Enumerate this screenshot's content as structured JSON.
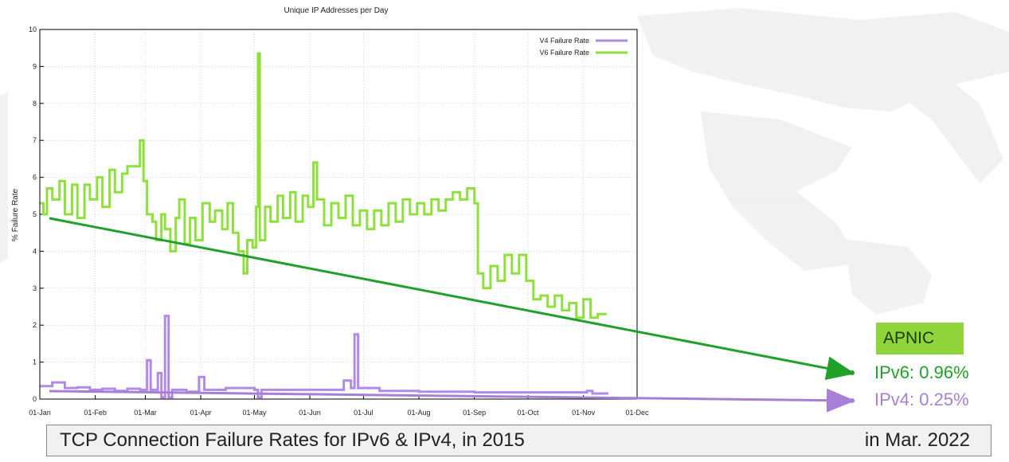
{
  "chart_data": {
    "type": "line",
    "title": "Unique IP Addresses per Day",
    "xlabel": "",
    "ylabel": "% Failure Rate",
    "ylim": [
      0,
      10
    ],
    "xlim": [
      "01-Jan",
      "01-Dec"
    ],
    "x_tick_labels": [
      "01-Jan",
      "01-Feb",
      "01-Mar",
      "01-Apr",
      "01-May",
      "01-Jun",
      "01-Jul",
      "01-Aug",
      "01-Sep",
      "01-Oct",
      "01-Nov",
      "01-Dec"
    ],
    "y_tick_labels": [
      "0",
      "1",
      "2",
      "3",
      "4",
      "5",
      "6",
      "7",
      "8",
      "9",
      "10"
    ],
    "grid": true,
    "legend_position": "top-right",
    "series": [
      {
        "name": "V4 Failure Rate",
        "color": "#b18ae8",
        "points": [
          [
            "01-Jan",
            0.35
          ],
          [
            "08-Jan",
            0.45
          ],
          [
            "15-Jan",
            0.3
          ],
          [
            "22-Jan",
            0.32
          ],
          [
            "29-Jan",
            0.25
          ],
          [
            "05-Feb",
            0.28
          ],
          [
            "12-Feb",
            0.22
          ],
          [
            "19-Feb",
            0.28
          ],
          [
            "26-Feb",
            0.25
          ],
          [
            "02-Mar",
            1.05
          ],
          [
            "04-Mar",
            0.25
          ],
          [
            "08-Mar",
            0.7
          ],
          [
            "10-Mar",
            0.05
          ],
          [
            "12-Mar",
            2.25
          ],
          [
            "14-Mar",
            0.05
          ],
          [
            "16-Mar",
            0.25
          ],
          [
            "24-Mar",
            0.2
          ],
          [
            "31-Mar",
            0.6
          ],
          [
            "03-Apr",
            0.25
          ],
          [
            "15-Apr",
            0.3
          ],
          [
            "01-May",
            0.25
          ],
          [
            "03-May",
            0.05
          ],
          [
            "05-May",
            0.25
          ],
          [
            "15-May",
            0.25
          ],
          [
            "01-Jun",
            0.25
          ],
          [
            "15-Jun",
            0.25
          ],
          [
            "20-Jun",
            0.5
          ],
          [
            "24-Jun",
            0.3
          ],
          [
            "26-Jun",
            1.75
          ],
          [
            "28-Jun",
            0.3
          ],
          [
            "10-Jul",
            0.22
          ],
          [
            "01-Aug",
            0.2
          ],
          [
            "15-Aug",
            0.2
          ],
          [
            "01-Sep",
            0.18
          ],
          [
            "03-Nov",
            0.22
          ],
          [
            "06-Nov",
            0.15
          ],
          [
            "15-Nov",
            0.15
          ]
        ]
      },
      {
        "name": "V6 Failure Rate",
        "color": "#8ee03d",
        "points": [
          [
            "01-Jan",
            5.3
          ],
          [
            "03-Jan",
            5.0
          ],
          [
            "05-Jan",
            5.7
          ],
          [
            "08-Jan",
            5.4
          ],
          [
            "12-Jan",
            5.9
          ],
          [
            "15-Jan",
            5.0
          ],
          [
            "19-Jan",
            5.8
          ],
          [
            "22-Jan",
            4.9
          ],
          [
            "26-Jan",
            5.8
          ],
          [
            "29-Jan",
            5.4
          ],
          [
            "02-Feb",
            6.0
          ],
          [
            "05-Feb",
            5.2
          ],
          [
            "09-Feb",
            6.2
          ],
          [
            "12-Feb",
            5.6
          ],
          [
            "16-Feb",
            6.1
          ],
          [
            "19-Feb",
            6.3
          ],
          [
            "23-Feb",
            6.3
          ],
          [
            "26-Feb",
            7.0
          ],
          [
            "28-Feb",
            5.9
          ],
          [
            "02-Mar",
            5.0
          ],
          [
            "05-Mar",
            4.8
          ],
          [
            "07-Mar",
            4.3
          ],
          [
            "10-Mar",
            5.0
          ],
          [
            "12-Mar",
            4.6
          ],
          [
            "15-Mar",
            4.0
          ],
          [
            "18-Mar",
            4.9
          ],
          [
            "20-Mar",
            5.4
          ],
          [
            "23-Mar",
            4.2
          ],
          [
            "26-Mar",
            4.9
          ],
          [
            "29-Mar",
            4.3
          ],
          [
            "02-Apr",
            5.3
          ],
          [
            "06-Apr",
            4.8
          ],
          [
            "09-Apr",
            5.1
          ],
          [
            "13-Apr",
            4.6
          ],
          [
            "16-Apr",
            5.3
          ],
          [
            "19-Apr",
            4.5
          ],
          [
            "22-Apr",
            4.0
          ],
          [
            "25-Apr",
            3.4
          ],
          [
            "27-Apr",
            4.3
          ],
          [
            "30-Apr",
            4.1
          ],
          [
            "02-May",
            5.2
          ],
          [
            "03-May",
            9.35
          ],
          [
            "04-May",
            4.3
          ],
          [
            "07-May",
            5.2
          ],
          [
            "10-May",
            4.8
          ],
          [
            "14-May",
            5.5
          ],
          [
            "17-May",
            4.9
          ],
          [
            "21-May",
            5.6
          ],
          [
            "24-May",
            4.8
          ],
          [
            "28-May",
            5.5
          ],
          [
            "31-May",
            5.2
          ],
          [
            "03-Jun",
            6.4
          ],
          [
            "05-Jun",
            5.4
          ],
          [
            "09-Jun",
            4.7
          ],
          [
            "13-Jun",
            5.3
          ],
          [
            "17-Jun",
            4.9
          ],
          [
            "21-Jun",
            5.5
          ],
          [
            "25-Jun",
            4.7
          ],
          [
            "29-Jun",
            5.1
          ],
          [
            "03-Jul",
            4.6
          ],
          [
            "07-Jul",
            5.1
          ],
          [
            "11-Jul",
            4.7
          ],
          [
            "15-Jul",
            5.3
          ],
          [
            "19-Jul",
            4.8
          ],
          [
            "23-Jul",
            5.4
          ],
          [
            "27-Jul",
            5.0
          ],
          [
            "31-Jul",
            5.3
          ],
          [
            "04-Aug",
            5.0
          ],
          [
            "08-Aug",
            5.4
          ],
          [
            "12-Aug",
            5.1
          ],
          [
            "16-Aug",
            5.4
          ],
          [
            "20-Aug",
            5.6
          ],
          [
            "24-Aug",
            5.4
          ],
          [
            "28-Aug",
            5.7
          ],
          [
            "01-Sep",
            5.3
          ],
          [
            "03-Sep",
            3.4
          ],
          [
            "06-Sep",
            3.0
          ],
          [
            "10-Sep",
            3.6
          ],
          [
            "14-Sep",
            3.2
          ],
          [
            "18-Sep",
            3.9
          ],
          [
            "22-Sep",
            3.4
          ],
          [
            "26-Sep",
            3.9
          ],
          [
            "30-Sep",
            3.2
          ],
          [
            "04-Oct",
            2.7
          ],
          [
            "08-Oct",
            2.8
          ],
          [
            "12-Oct",
            2.5
          ],
          [
            "16-Oct",
            2.8
          ],
          [
            "20-Oct",
            2.4
          ],
          [
            "24-Oct",
            2.6
          ],
          [
            "28-Oct",
            2.2
          ],
          [
            "01-Nov",
            2.7
          ],
          [
            "05-Nov",
            2.2
          ],
          [
            "09-Nov",
            2.3
          ],
          [
            "14-Nov",
            2.3
          ]
        ]
      }
    ],
    "annotations": {
      "badge": "APNIC",
      "ipv6_rate": "IPv6: 0.96%",
      "ipv4_rate": "IPv4: 0.25%",
      "ipv6_color": "#1fa12a",
      "ipv4_color": "#a77fd8"
    }
  },
  "caption": {
    "left": "TCP Connection Failure Rates for IPv6 & IPv4, in 2015",
    "right": "in Mar. 2022"
  }
}
